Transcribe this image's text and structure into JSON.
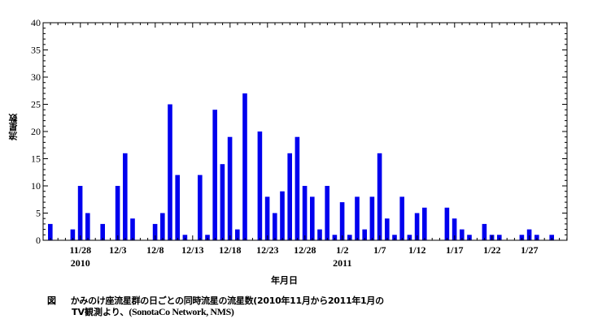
{
  "chart_data": {
    "type": "bar",
    "title": "",
    "xlabel": "年月日",
    "ylabel": "流星数",
    "ylim": [
      0,
      40
    ],
    "yticks": [
      0,
      5,
      10,
      15,
      20,
      25,
      30,
      35,
      40
    ],
    "x_start_date": "2010-11-24",
    "num_days": 70,
    "bar_color": "#0000ee",
    "x_tick_labels": [
      {
        "day_index": 4,
        "label": "11/28",
        "sub": "2010"
      },
      {
        "day_index": 9,
        "label": "12/3"
      },
      {
        "day_index": 14,
        "label": "12/8"
      },
      {
        "day_index": 19,
        "label": "12/13"
      },
      {
        "day_index": 24,
        "label": "12/18"
      },
      {
        "day_index": 29,
        "label": "12/23"
      },
      {
        "day_index": 34,
        "label": "12/28"
      },
      {
        "day_index": 39,
        "label": "1/2",
        "sub": "2011"
      },
      {
        "day_index": 44,
        "label": "1/7"
      },
      {
        "day_index": 49,
        "label": "1/12"
      },
      {
        "day_index": 54,
        "label": "1/17"
      },
      {
        "day_index": 59,
        "label": "1/22"
      },
      {
        "day_index": 64,
        "label": "1/27"
      }
    ],
    "categories": [
      "11/24",
      "11/25",
      "11/26",
      "11/27",
      "11/28",
      "11/29",
      "11/30",
      "12/1",
      "12/2",
      "12/3",
      "12/4",
      "12/5",
      "12/6",
      "12/7",
      "12/8",
      "12/9",
      "12/10",
      "12/11",
      "12/12",
      "12/13",
      "12/14",
      "12/15",
      "12/16",
      "12/17",
      "12/18",
      "12/19",
      "12/20",
      "12/21",
      "12/22",
      "12/23",
      "12/24",
      "12/25",
      "12/26",
      "12/27",
      "12/28",
      "12/29",
      "12/30",
      "12/31",
      "1/1",
      "1/2",
      "1/3",
      "1/4",
      "1/5",
      "1/6",
      "1/7",
      "1/8",
      "1/9",
      "1/10",
      "1/11",
      "1/12",
      "1/13",
      "1/14",
      "1/15",
      "1/16",
      "1/17",
      "1/18",
      "1/19",
      "1/20",
      "1/21",
      "1/22",
      "1/23",
      "1/24",
      "1/25",
      "1/26",
      "1/27",
      "1/28",
      "1/29",
      "1/30",
      "1/31",
      "2/1"
    ],
    "values": [
      3,
      0,
      0,
      2,
      10,
      5,
      0,
      3,
      0,
      10,
      16,
      4,
      0,
      0,
      3,
      5,
      25,
      12,
      1,
      0,
      12,
      1,
      24,
      14,
      19,
      2,
      27,
      0,
      20,
      8,
      5,
      9,
      16,
      19,
      10,
      8,
      2,
      10,
      1,
      7,
      1,
      8,
      2,
      8,
      16,
      4,
      1,
      8,
      1,
      5,
      6,
      0,
      0,
      6,
      4,
      2,
      1,
      0,
      3,
      1,
      1,
      0,
      0,
      1,
      2,
      1,
      0,
      1,
      0,
      0
    ]
  },
  "caption": {
    "fig_mark": "図",
    "line1": "かみのけ座流星群の日ごとの同時流星の流星数(2010年11月から2011年1月の",
    "line2_jp": "TV観測より、",
    "line2_src": "(SonotaCo Network, NMS)"
  }
}
